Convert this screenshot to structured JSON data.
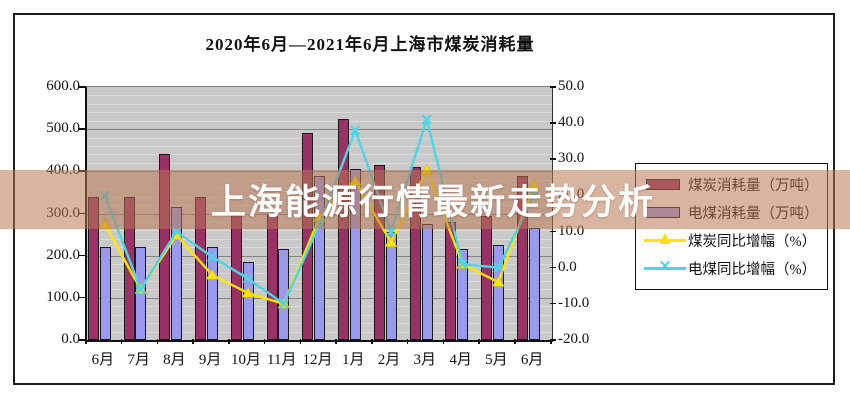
{
  "title": "2020年6月—2021年6月上海市煤炭消耗量",
  "watermark": {
    "text": "上海能源行情最新走势分析"
  },
  "chart_data": {
    "type": "combo bar+line",
    "categories": [
      "6月",
      "7月",
      "8月",
      "9月",
      "10月",
      "11月",
      "12月",
      "1月",
      "2月",
      "3月",
      "4月",
      "5月",
      "6月"
    ],
    "series": [
      {
        "name": "煤炭消耗量（万吨）",
        "type": "bar",
        "axis": "left",
        "color": "#993366",
        "values": [
          340,
          340,
          440,
          340,
          300,
          300,
          490,
          525,
          415,
          410,
          280,
          295,
          390
        ]
      },
      {
        "name": "电煤消耗量（万吨）",
        "type": "bar",
        "axis": "left",
        "color": "#9999EE",
        "values": [
          220,
          220,
          315,
          220,
          185,
          215,
          390,
          405,
          255,
          275,
          215,
          225,
          265
        ]
      },
      {
        "name": "煤炭同比增幅（%）",
        "type": "line",
        "axis": "right",
        "color": "#FFE400",
        "marker": "triangle",
        "values": [
          12,
          -6,
          9,
          -2,
          -7,
          -10,
          14,
          24,
          7,
          27,
          1,
          -4,
          23
        ]
      },
      {
        "name": "电煤同比增幅（%）",
        "type": "line",
        "axis": "right",
        "color": "#4FD4E4",
        "marker": "x",
        "values": [
          20,
          -6,
          10,
          3,
          -3,
          -10,
          12,
          38,
          10,
          41,
          1,
          0,
          20
        ]
      }
    ],
    "left_axis": {
      "min": 0,
      "max": 600,
      "step": 100,
      "tick_labels": [
        "600.0",
        "500.0",
        "400.0",
        "300.0",
        "200.0",
        "100.0",
        "0.0"
      ]
    },
    "right_axis": {
      "min": -20,
      "max": 50,
      "step": 10,
      "tick_labels": [
        "50.0",
        "40.0",
        "30.0",
        "20.0",
        "10.0",
        "0.0",
        "-10.0",
        "-20.0"
      ]
    },
    "grid": {
      "minor_step": 20,
      "major_step": 100,
      "plot_background": "#c9c9c9"
    },
    "legend_position": "right"
  }
}
